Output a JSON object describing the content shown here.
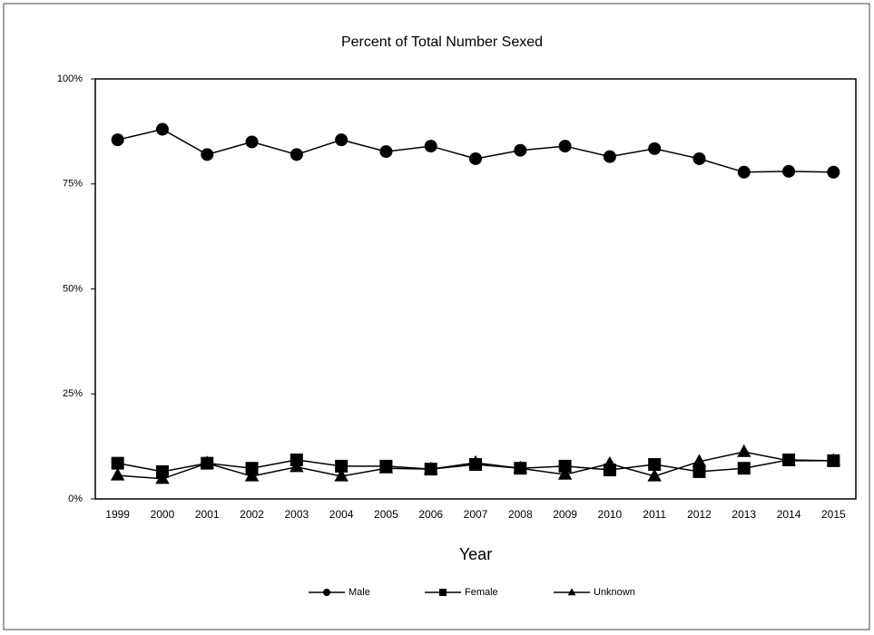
{
  "chart_data": {
    "type": "line",
    "title": "Percent of Total Number  Sexed",
    "xlabel": "Year",
    "categories": [
      "1999",
      "2000",
      "2001",
      "2002",
      "2003",
      "2004",
      "2005",
      "2006",
      "2007",
      "2008",
      "2009",
      "2010",
      "2011",
      "2012",
      "2013",
      "2014",
      "2015"
    ],
    "series": [
      {
        "name": "Male",
        "color": "#000000",
        "marker": "circle",
        "values": [
          85.5,
          88,
          82,
          85,
          82,
          85.5,
          82.7,
          84,
          81,
          83,
          84,
          81.5,
          83.4,
          81,
          77.8,
          78,
          77.8
        ]
      },
      {
        "name": "Female",
        "color": "#000000",
        "marker": "square",
        "values": [
          8.5,
          6.5,
          8.5,
          7.3,
          9.3,
          7.8,
          7.8,
          7.1,
          8.2,
          7.3,
          7.8,
          6.9,
          8.2,
          6.5,
          7.3,
          9.3,
          9.1
        ]
      },
      {
        "name": "Unknown",
        "color": "#000000",
        "marker": "triangle",
        "values": [
          5.6,
          4.8,
          8.5,
          5.4,
          7.6,
          5.4,
          7.3,
          7.1,
          8.6,
          7.3,
          5.8,
          8.4,
          5.4,
          8.9,
          11.2,
          9.1,
          9.1
        ]
      }
    ],
    "ylim": [
      0,
      100
    ],
    "yticks": [
      {
        "value": 0,
        "label": "0%"
      },
      {
        "value": 25,
        "label": "25%"
      },
      {
        "value": 50,
        "label": "50%"
      },
      {
        "value": 75,
        "label": "75%"
      },
      {
        "value": 100,
        "label": "100%"
      }
    ],
    "grid": false,
    "legend": "bottom"
  }
}
